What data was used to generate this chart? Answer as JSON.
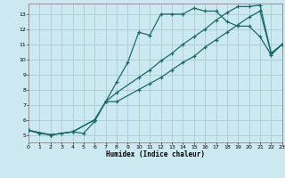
{
  "xlabel": "Humidex (Indice chaleur)",
  "bg_color": "#cce8f0",
  "grid_color": "#aacccc",
  "line_color": "#1a6b6b",
  "xlim": [
    0,
    23
  ],
  "ylim": [
    4.5,
    13.7
  ],
  "xticks": [
    0,
    1,
    2,
    3,
    4,
    5,
    6,
    7,
    8,
    9,
    10,
    11,
    12,
    13,
    14,
    15,
    16,
    17,
    18,
    19,
    20,
    21,
    22,
    23
  ],
  "yticks": [
    5,
    6,
    7,
    8,
    9,
    10,
    11,
    12,
    13
  ],
  "line1_x": [
    0,
    1,
    2,
    3,
    4,
    5,
    6,
    7,
    8,
    9,
    10,
    11,
    12,
    13,
    14,
    15,
    16,
    17,
    18,
    19,
    20,
    21,
    22,
    23
  ],
  "line1_y": [
    5.3,
    5.1,
    5.0,
    5.1,
    5.2,
    5.1,
    5.9,
    7.2,
    8.5,
    9.8,
    11.8,
    11.6,
    13.0,
    13.0,
    13.0,
    13.4,
    13.2,
    13.2,
    12.5,
    12.2,
    12.2,
    11.5,
    10.3,
    11.0
  ],
  "line2_x": [
    0,
    2,
    4,
    6,
    7,
    8,
    10,
    11,
    12,
    13,
    14,
    15,
    16,
    17,
    18,
    19,
    20,
    21,
    22,
    23
  ],
  "line2_y": [
    5.3,
    5.0,
    5.2,
    6.0,
    7.2,
    7.8,
    8.8,
    9.3,
    9.9,
    10.4,
    11.0,
    11.5,
    12.0,
    12.6,
    13.1,
    13.5,
    13.5,
    13.6,
    10.4,
    11.0
  ],
  "line3_x": [
    0,
    2,
    4,
    6,
    7,
    8,
    10,
    11,
    12,
    13,
    14,
    15,
    16,
    17,
    18,
    19,
    20,
    21,
    22,
    23
  ],
  "line3_y": [
    5.3,
    5.0,
    5.2,
    6.0,
    7.2,
    7.2,
    8.0,
    8.4,
    8.8,
    9.3,
    9.8,
    10.2,
    10.8,
    11.3,
    11.8,
    12.3,
    12.8,
    13.2,
    10.4,
    11.0
  ]
}
